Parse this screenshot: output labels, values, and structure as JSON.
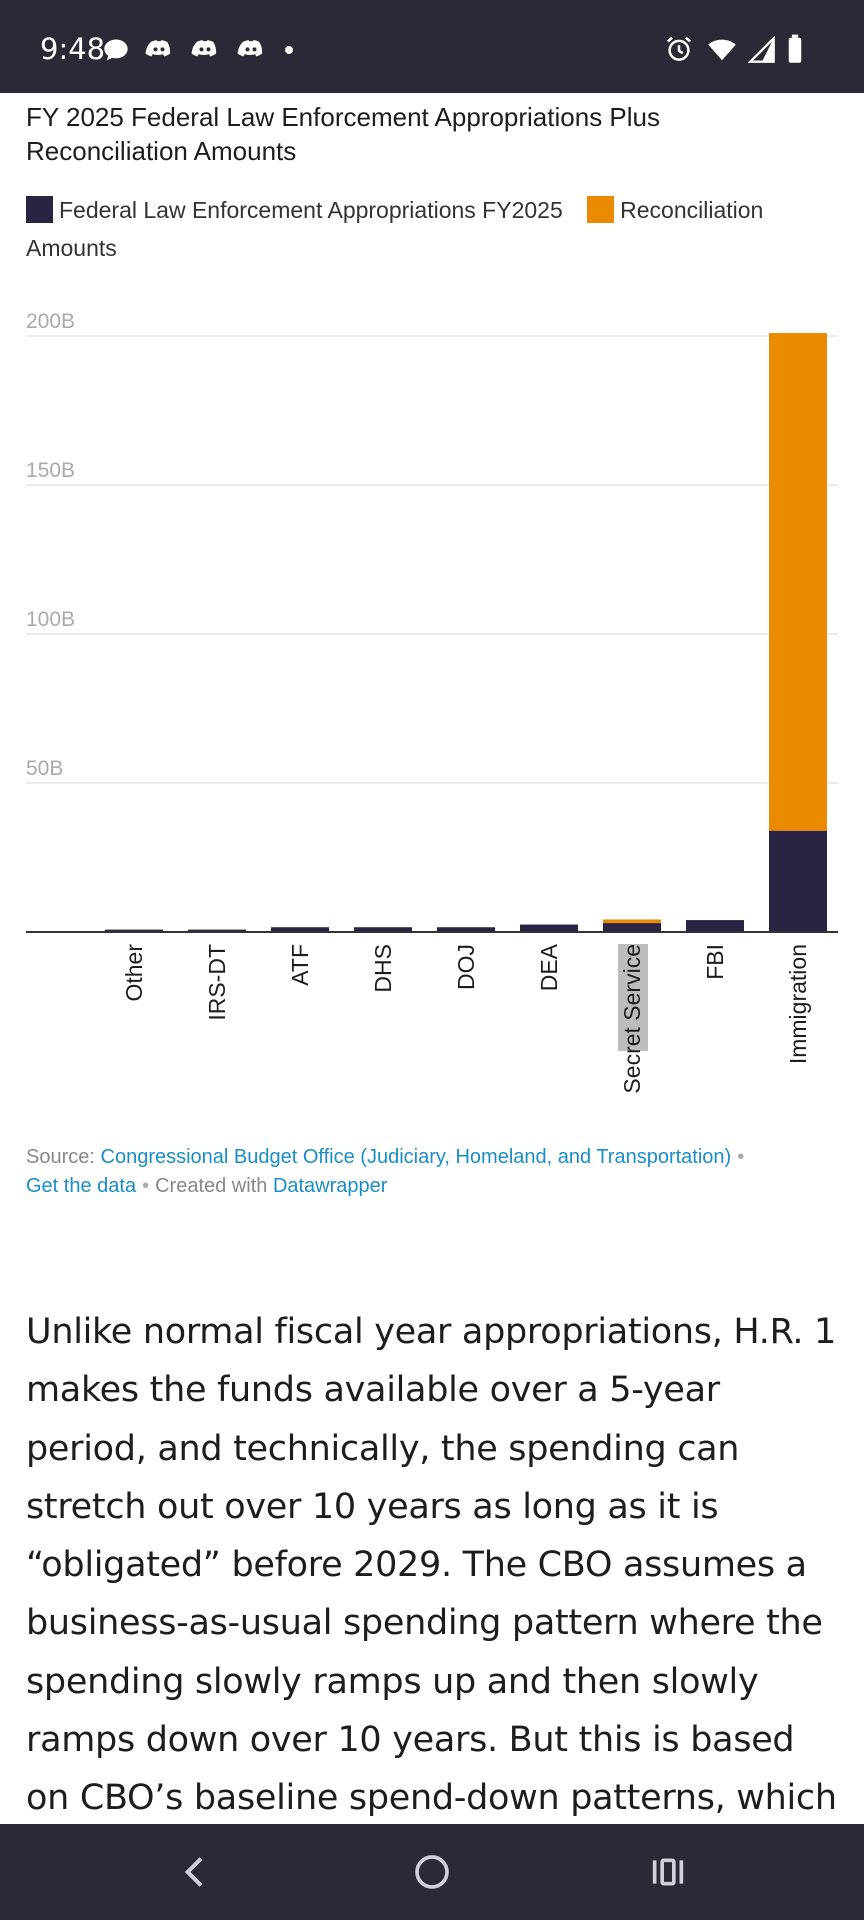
{
  "status_bar": {
    "time": "9:48",
    "left_icons": [
      "chat-bubble-icon",
      "discord-icon",
      "discord-icon",
      "discord-icon",
      "notification-dot-icon"
    ],
    "right_icons": [
      "alarm-icon",
      "wifi-icon",
      "signal-icon",
      "battery-icon"
    ]
  },
  "chart": {
    "title": "FY 2025 Federal Law Enforcement Appropriations Plus Reconciliation Amounts",
    "legend": [
      {
        "label": "Federal Law Enforcement Appropriations FY2025",
        "color": "#2a2344"
      },
      {
        "label": "Reconciliation Amounts",
        "color": "#e98a00"
      }
    ]
  },
  "chart_data": {
    "type": "bar",
    "stacked": true,
    "categories": [
      "Other",
      "IRS-DT",
      "ATF",
      "DHS",
      "DOJ",
      "DEA",
      "Secret Service",
      "FBI",
      "Immigration"
    ],
    "series": [
      {
        "name": "Federal Law Enforcement Appropriations FY2025",
        "color": "#2a2344",
        "values": [
          0.8,
          0.8,
          1.6,
          1.6,
          1.6,
          2.5,
          3.0,
          4.0,
          34.0
        ]
      },
      {
        "name": "Reconciliation Amounts",
        "color": "#e98a00",
        "values": [
          0,
          0,
          0,
          0,
          0,
          0,
          1.2,
          0,
          167.0
        ]
      }
    ],
    "yticks": [
      50,
      100,
      150,
      200
    ],
    "ytick_labels": [
      "50B",
      "100B",
      "150B",
      "200B"
    ],
    "ylim": [
      0,
      205
    ],
    "highlighted_category": "Secret Service"
  },
  "source": {
    "prefix": "Source:",
    "link": "Congressional Budget Office (Judiciary, Homeland, and Transportation)",
    "separator": "•",
    "get_data": "Get the data",
    "created_with": "Created with",
    "tool": "Datawrapper"
  },
  "article": {
    "paragraph": "Unlike normal fiscal year appropriations, H.R. 1 makes the funds available over a 5-year period, and technically, the spending can stretch out over 10 years as long as it is “obligated” before 2029. The CBO assumes a business-as-usual spending pattern where the spending slowly ramps up and then slowly ramps down over 10 years. But this is based on CBO’s baseline spend-down patterns, which is absurd here."
  },
  "nav_bar": {
    "buttons": [
      "back-icon",
      "home-icon",
      "recents-icon"
    ]
  }
}
